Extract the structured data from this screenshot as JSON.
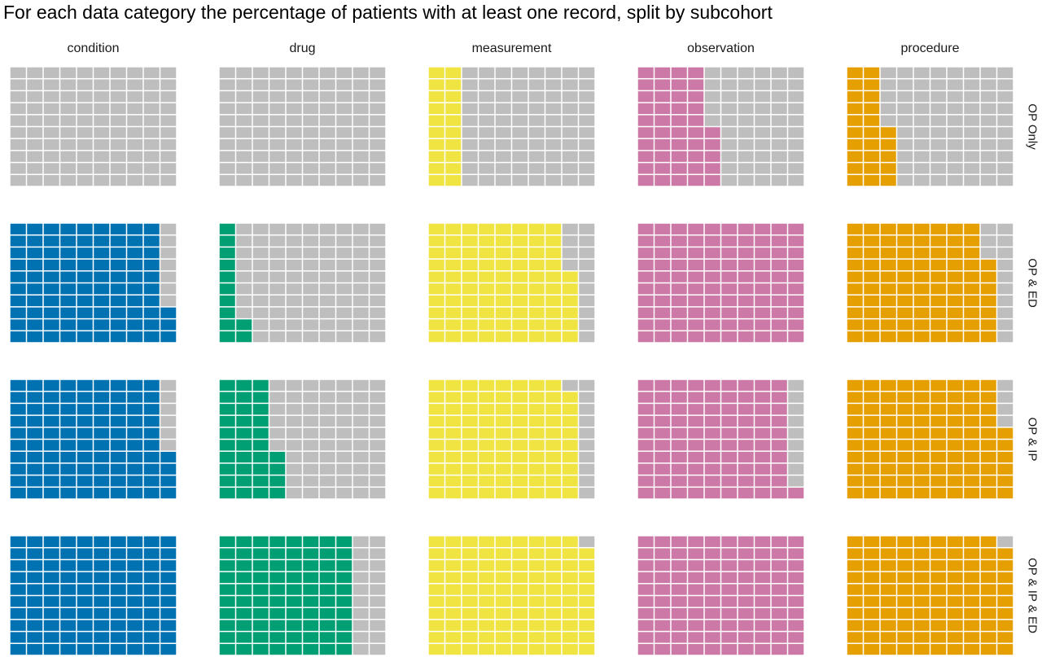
{
  "chart_data": {
    "type": "waffle",
    "title": "For each data category the percentage of patients with at least one record, split by subcohort",
    "columns": [
      "condition",
      "drug",
      "measurement",
      "observation",
      "procedure"
    ],
    "rows": [
      "OP Only",
      "OP & ED",
      "OP & IP",
      "OP & IP & ED"
    ],
    "grid": {
      "columns_of_squares": 10,
      "rows_of_squares": 10,
      "fill_direction": "column-wise from left, bottom to top"
    },
    "unfilled_color": "#bebebe",
    "colors": {
      "condition": "#0072b2",
      "drug": "#009e73",
      "measurement": "#f0e442",
      "observation": "#cc79a7",
      "procedure": "#e69f00"
    },
    "values_percent": {
      "OP Only": {
        "condition": 0,
        "drug": 0,
        "measurement": 20,
        "observation": 45,
        "procedure": 25
      },
      "OP & ED": {
        "condition": 93,
        "drug": 12,
        "measurement": 86,
        "observation": 100,
        "procedure": 87
      },
      "OP & IP": {
        "condition": 94,
        "drug": 34,
        "measurement": 89,
        "observation": 91,
        "procedure": 96
      },
      "OP & IP & ED": {
        "condition": 100,
        "drug": 80,
        "measurement": 99,
        "observation": 100,
        "procedure": 99
      }
    }
  }
}
